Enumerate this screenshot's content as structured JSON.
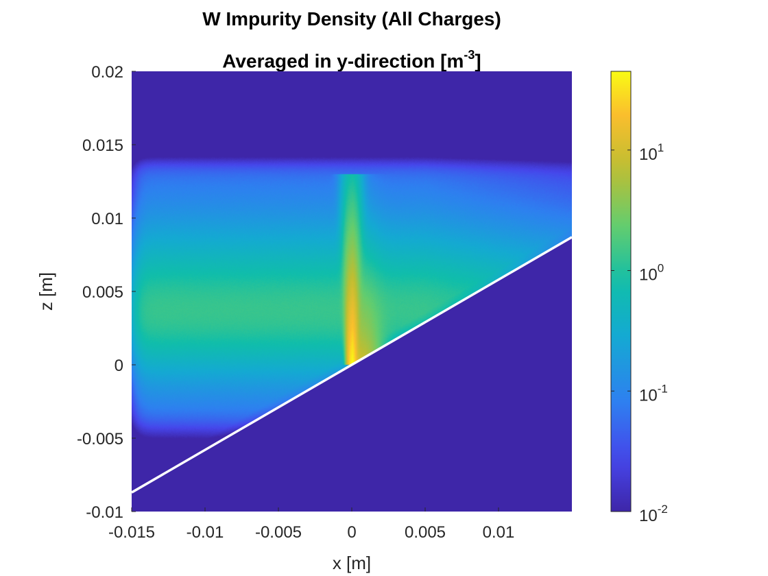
{
  "title_line1": "W Impurity Density (All Charges)",
  "title_line2_prefix": "Averaged in y-direction [m",
  "title_line2_sup": "-3",
  "title_line2_suffix": "]",
  "chart_data": {
    "type": "heatmap",
    "title": "W Impurity Density (All Charges) Averaged in y-direction [m^-3]",
    "xlabel": "x [m]",
    "ylabel": "z [m]",
    "xlim": [
      -0.015,
      0.015
    ],
    "ylim": [
      -0.01,
      0.02
    ],
    "x_ticks": [
      {
        "value": -0.015,
        "label": "-0.015"
      },
      {
        "value": -0.01,
        "label": "-0.01"
      },
      {
        "value": -0.005,
        "label": "-0.005"
      },
      {
        "value": 0,
        "label": "0"
      },
      {
        "value": 0.005,
        "label": "0.005"
      },
      {
        "value": 0.01,
        "label": "0.01"
      }
    ],
    "y_ticks": [
      {
        "value": -0.01,
        "label": "-0.01"
      },
      {
        "value": -0.005,
        "label": "-0.005"
      },
      {
        "value": 0,
        "label": "0"
      },
      {
        "value": 0.005,
        "label": "0.005"
      },
      {
        "value": 0.01,
        "label": "0.01"
      },
      {
        "value": 0.015,
        "label": "0.015"
      },
      {
        "value": 0.02,
        "label": "0.02"
      }
    ],
    "colorbar": {
      "scale": "log",
      "range": [
        0.01,
        45
      ],
      "ticks": [
        {
          "value": 0.01,
          "base": "10",
          "exp": "-2"
        },
        {
          "value": 0.1,
          "base": "10",
          "exp": "-1"
        },
        {
          "value": 1,
          "base": "10",
          "exp": "0"
        },
        {
          "value": 10,
          "base": "10",
          "exp": "1"
        }
      ],
      "colormap": "parula"
    },
    "surface_line": {
      "x": [
        -0.015,
        0.015
      ],
      "z": [
        -0.0087,
        0.0087
      ],
      "color": "#ffffff"
    },
    "field": {
      "background_value": 0.01,
      "cloud_top_z": 0.0135,
      "band_peak_value": 1.6,
      "band_center_z": 0.0035,
      "spike_x": 0.0,
      "spike_peak_value": 40,
      "spike_top_z": 0.013
    }
  }
}
